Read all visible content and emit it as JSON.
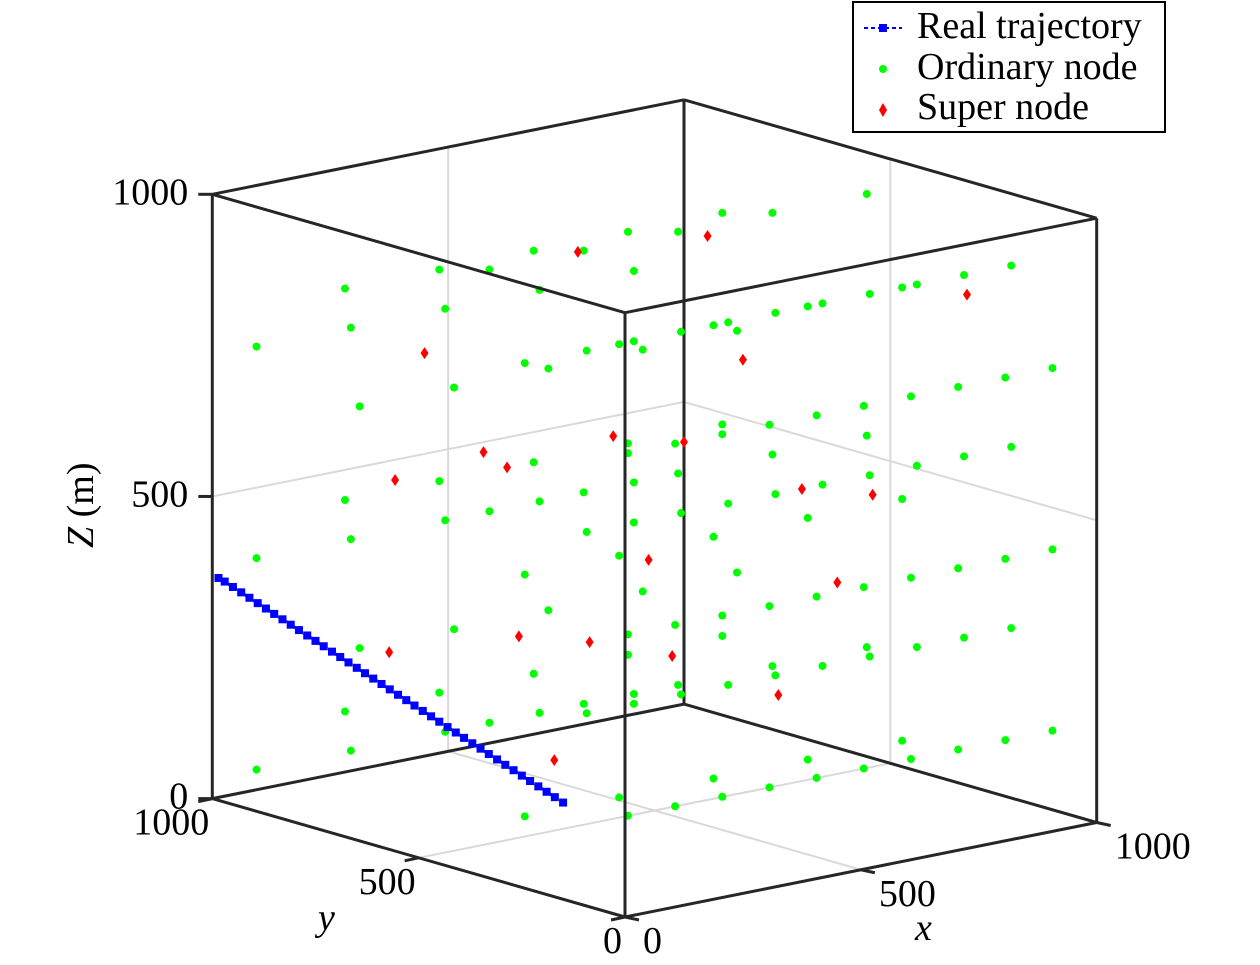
{
  "chart_data": {
    "type": "scatter3d",
    "grid": true,
    "legend_position": "top-right",
    "axes": {
      "x": {
        "label": "x",
        "range": [
          0,
          1000
        ],
        "ticks": [
          0,
          500,
          1000
        ],
        "tick_labels": [
          "0",
          "500",
          "1000"
        ]
      },
      "y": {
        "label": "y",
        "range": [
          0,
          1000
        ],
        "ticks": [
          0,
          500,
          1000
        ],
        "tick_labels": [
          "0",
          "500",
          "1000"
        ]
      },
      "z": {
        "label_main": "Z",
        "label_unit": " (m)",
        "range": [
          0,
          1000
        ],
        "ticks": [
          0,
          500,
          1000
        ],
        "tick_labels": [
          "0",
          "500",
          "1000"
        ]
      }
    },
    "colors": {
      "real_trajectory": "#0000ff",
      "ordinary_node": "#00ff00",
      "super_node": "#ff0000",
      "grid": "#d9d9d9",
      "box": "#262626"
    },
    "series": [
      {
        "name": "Real trajectory",
        "type": "line-markers",
        "points": [
          [
            0,
            150,
            160
          ],
          [
            0,
            170,
            165
          ],
          [
            0,
            190,
            170
          ],
          [
            0,
            210,
            175
          ],
          [
            0,
            230,
            180
          ],
          [
            0,
            250,
            185
          ],
          [
            0,
            270,
            190
          ],
          [
            0,
            290,
            195
          ],
          [
            0,
            310,
            200
          ],
          [
            0,
            330,
            205
          ],
          [
            0,
            350,
            210
          ],
          [
            0,
            370,
            215
          ],
          [
            0,
            390,
            220
          ],
          [
            0,
            410,
            225
          ],
          [
            0,
            430,
            230
          ],
          [
            0,
            450,
            235
          ],
          [
            0,
            470,
            240
          ],
          [
            0,
            490,
            245
          ],
          [
            0,
            510,
            250
          ],
          [
            0,
            530,
            255
          ],
          [
            0,
            550,
            260
          ],
          [
            0,
            570,
            265
          ],
          [
            0,
            590,
            270
          ],
          [
            0,
            610,
            275
          ],
          [
            0,
            630,
            280
          ],
          [
            0,
            650,
            285
          ],
          [
            0,
            670,
            290
          ],
          [
            0,
            690,
            295
          ],
          [
            0,
            710,
            300
          ],
          [
            0,
            730,
            305
          ],
          [
            0,
            750,
            310
          ],
          [
            0,
            770,
            315
          ],
          [
            0,
            790,
            320
          ],
          [
            0,
            810,
            325
          ],
          [
            0,
            830,
            330
          ],
          [
            0,
            850,
            335
          ],
          [
            0,
            870,
            340
          ],
          [
            0,
            890,
            345
          ],
          [
            0,
            910,
            350
          ],
          [
            0,
            930,
            355
          ],
          [
            0,
            950,
            360
          ],
          [
            0,
            970,
            365
          ],
          [
            0,
            985,
            368
          ]
        ]
      },
      {
        "name": "Ordinary node",
        "type": "scatter",
        "points": [
          [
            50,
            50,
            150
          ],
          [
            150,
            50,
            150
          ],
          [
            250,
            50,
            150
          ],
          [
            350,
            50,
            150
          ],
          [
            450,
            50,
            150
          ],
          [
            550,
            50,
            150
          ],
          [
            650,
            50,
            150
          ],
          [
            750,
            50,
            150
          ],
          [
            850,
            50,
            150
          ],
          [
            950,
            50,
            150
          ],
          [
            50,
            50,
            450
          ],
          [
            150,
            50,
            450
          ],
          [
            250,
            50,
            450
          ],
          [
            350,
            50,
            450
          ],
          [
            450,
            50,
            450
          ],
          [
            550,
            50,
            450
          ],
          [
            650,
            50,
            450
          ],
          [
            750,
            50,
            450
          ],
          [
            850,
            50,
            450
          ],
          [
            950,
            50,
            450
          ],
          [
            50,
            50,
            750
          ],
          [
            150,
            50,
            750
          ],
          [
            250,
            50,
            750
          ],
          [
            350,
            50,
            750
          ],
          [
            450,
            50,
            750
          ],
          [
            550,
            50,
            750
          ],
          [
            650,
            50,
            750
          ],
          [
            750,
            50,
            750
          ],
          [
            850,
            50,
            750
          ],
          [
            950,
            50,
            750
          ],
          [
            50,
            150,
            300
          ],
          [
            150,
            150,
            300
          ],
          [
            250,
            150,
            300
          ],
          [
            350,
            150,
            300
          ],
          [
            450,
            150,
            300
          ],
          [
            550,
            150,
            300
          ],
          [
            650,
            150,
            300
          ],
          [
            750,
            150,
            300
          ],
          [
            850,
            150,
            300
          ],
          [
            950,
            150,
            300
          ],
          [
            50,
            150,
            600
          ],
          [
            150,
            150,
            600
          ],
          [
            250,
            150,
            600
          ],
          [
            350,
            150,
            600
          ],
          [
            450,
            150,
            600
          ],
          [
            550,
            150,
            600
          ],
          [
            650,
            150,
            600
          ],
          [
            750,
            150,
            600
          ],
          [
            850,
            150,
            600
          ],
          [
            950,
            150,
            600
          ],
          [
            50,
            150,
            900
          ],
          [
            150,
            150,
            900
          ],
          [
            250,
            150,
            900
          ],
          [
            350,
            150,
            900
          ],
          [
            450,
            150,
            900
          ],
          [
            550,
            150,
            900
          ],
          [
            650,
            150,
            900
          ],
          [
            750,
            150,
            900
          ],
          [
            850,
            150,
            900
          ],
          [
            950,
            150,
            900
          ],
          [
            50,
            300,
            100
          ],
          [
            250,
            300,
            100
          ],
          [
            450,
            300,
            100
          ],
          [
            650,
            300,
            100
          ],
          [
            850,
            300,
            100
          ],
          [
            50,
            300,
            500
          ],
          [
            250,
            300,
            500
          ],
          [
            450,
            300,
            500
          ],
          [
            650,
            300,
            500
          ],
          [
            850,
            300,
            500
          ],
          [
            50,
            300,
            850
          ],
          [
            250,
            300,
            850
          ],
          [
            450,
            300,
            850
          ],
          [
            650,
            300,
            850
          ],
          [
            850,
            300,
            850
          ],
          [
            150,
            500,
            200
          ],
          [
            350,
            500,
            200
          ],
          [
            550,
            500,
            200
          ],
          [
            750,
            500,
            200
          ],
          [
            950,
            500,
            200
          ],
          [
            150,
            500,
            550
          ],
          [
            350,
            500,
            550
          ],
          [
            550,
            500,
            550
          ],
          [
            750,
            500,
            550
          ],
          [
            950,
            500,
            550
          ],
          [
            150,
            500,
            950
          ],
          [
            350,
            500,
            950
          ],
          [
            550,
            500,
            950
          ],
          [
            750,
            500,
            950
          ],
          [
            950,
            500,
            950
          ],
          [
            50,
            700,
            300
          ],
          [
            250,
            700,
            300
          ],
          [
            450,
            700,
            300
          ],
          [
            650,
            700,
            300
          ],
          [
            850,
            700,
            300
          ],
          [
            50,
            700,
            700
          ],
          [
            250,
            700,
            700
          ],
          [
            450,
            700,
            700
          ],
          [
            650,
            700,
            700
          ],
          [
            850,
            700,
            700
          ],
          [
            150,
            850,
            150
          ],
          [
            350,
            850,
            150
          ],
          [
            550,
            850,
            150
          ],
          [
            750,
            850,
            150
          ],
          [
            950,
            850,
            150
          ],
          [
            150,
            850,
            500
          ],
          [
            350,
            850,
            500
          ],
          [
            550,
            850,
            500
          ],
          [
            750,
            850,
            500
          ],
          [
            950,
            850,
            500
          ],
          [
            150,
            850,
            850
          ],
          [
            350,
            850,
            850
          ],
          [
            550,
            850,
            850
          ],
          [
            750,
            850,
            850
          ],
          [
            950,
            850,
            850
          ],
          [
            50,
            950,
            50
          ],
          [
            250,
            950,
            50
          ],
          [
            450,
            950,
            50
          ],
          [
            650,
            950,
            50
          ],
          [
            850,
            950,
            50
          ],
          [
            50,
            950,
            400
          ],
          [
            250,
            950,
            400
          ],
          [
            450,
            950,
            400
          ],
          [
            650,
            950,
            400
          ],
          [
            850,
            950,
            400
          ],
          [
            50,
            950,
            750
          ],
          [
            250,
            950,
            750
          ],
          [
            450,
            950,
            750
          ],
          [
            650,
            950,
            750
          ],
          [
            850,
            950,
            750
          ]
        ]
      },
      {
        "name": "Super node",
        "type": "scatter",
        "points": [
          [
            100,
            200,
            400
          ],
          [
            300,
            200,
            700
          ],
          [
            500,
            200,
            250
          ],
          [
            700,
            200,
            550
          ],
          [
            900,
            200,
            850
          ],
          [
            200,
            400,
            150
          ],
          [
            400,
            400,
            450
          ],
          [
            600,
            400,
            750
          ],
          [
            800,
            400,
            350
          ],
          [
            100,
            400,
            650
          ],
          [
            300,
            600,
            300
          ],
          [
            500,
            600,
            600
          ],
          [
            700,
            600,
            900
          ],
          [
            900,
            600,
            450
          ],
          [
            100,
            600,
            800
          ],
          [
            200,
            800,
            250
          ],
          [
            400,
            800,
            550
          ],
          [
            600,
            800,
            850
          ],
          [
            800,
            800,
            150
          ],
          [
            300,
            900,
            500
          ]
        ]
      }
    ]
  }
}
